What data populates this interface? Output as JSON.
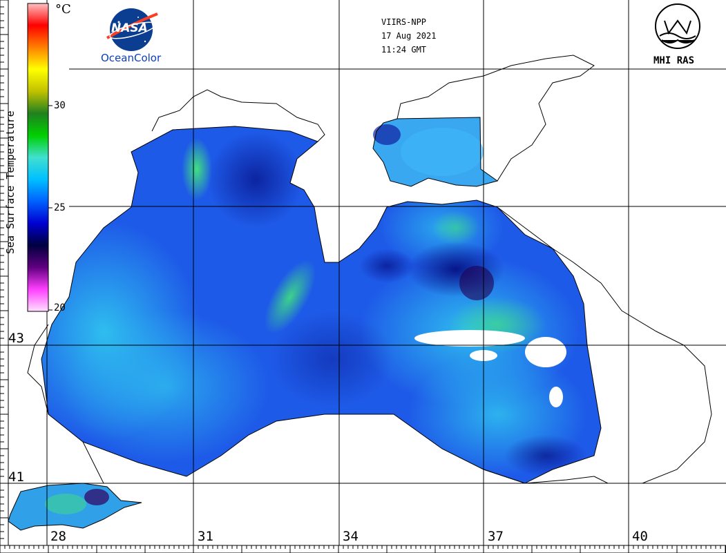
{
  "header": {
    "satellite": "VIIRS-NPP",
    "date": "17 Aug 2021",
    "time": "11:24 GMT",
    "left_logo_text": "OceanColor",
    "nasa_logo_text": "NASA",
    "right_logo_text": "MHI RAS"
  },
  "colorbar": {
    "title": "Sea Surface Temperature",
    "unit": "°C",
    "ticks": [
      "30",
      "25",
      "20"
    ],
    "range": [
      20,
      35
    ],
    "colors": [
      "#ffe0ff",
      "#ff40ff",
      "#600080",
      "#000040",
      "#0000d0",
      "#0060ff",
      "#00c0ff",
      "#40e0d0",
      "#00d000",
      "#208020",
      "#c0c000",
      "#ffff00",
      "#ff8000",
      "#ff0000",
      "#ffc0c0"
    ]
  },
  "axes": {
    "longitudes": [
      "28",
      "31",
      "34",
      "37",
      "40"
    ],
    "latitudes": [
      "43",
      "41"
    ]
  },
  "colors": {
    "water_base": "#1e50e6",
    "land": "#ffffff",
    "coast": "#000000",
    "grid": "#000000"
  }
}
